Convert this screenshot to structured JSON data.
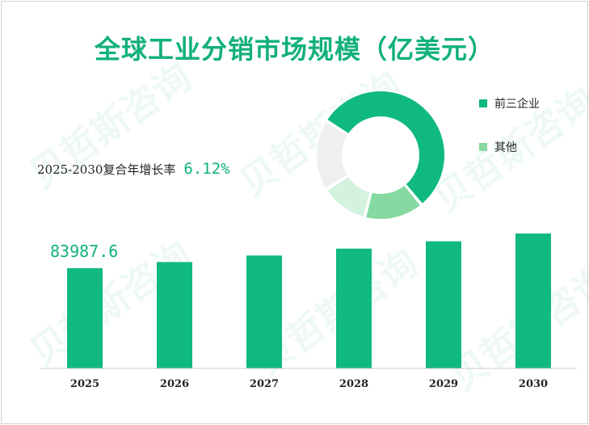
{
  "title": "全球工业分销市场规模（亿美元）",
  "watermark": "贝哲斯咨询",
  "cagr": {
    "label": "2025-2030复合年增长率",
    "value": "6.12%"
  },
  "colors": {
    "accent": "#12b07c",
    "bar": "#10b981",
    "light_green": "#86d9a1",
    "pale_green": "#d4f3df",
    "grey": "#efefef"
  },
  "chart_data": [
    {
      "type": "bar",
      "categories": [
        "2025",
        "2026",
        "2027",
        "2028",
        "2029",
        "2030"
      ],
      "values": [
        83987.6,
        89127.6,
        94582.2,
        100370.7,
        106513.4,
        113031.8
      ],
      "data_labels": [
        "83987.6",
        "",
        "",
        "",
        "",
        ""
      ],
      "title": "",
      "xlabel": "",
      "ylabel": "",
      "ylim": [
        0,
        113031.8
      ]
    },
    {
      "type": "pie",
      "donut": true,
      "legend": [
        {
          "name": "前三企业",
          "color": "#10b981"
        },
        {
          "name": "其他",
          "color": "#86d9a1"
        }
      ],
      "slices": [
        {
          "label": "前三企业",
          "value": 55,
          "color": "#10b981"
        },
        {
          "label": "其他",
          "value": 15,
          "color": "#86d9a1"
        },
        {
          "label": "其他",
          "value": 12,
          "color": "#d4f3df"
        },
        {
          "label": "其他",
          "value": 18,
          "color": "#efefef"
        }
      ]
    }
  ]
}
